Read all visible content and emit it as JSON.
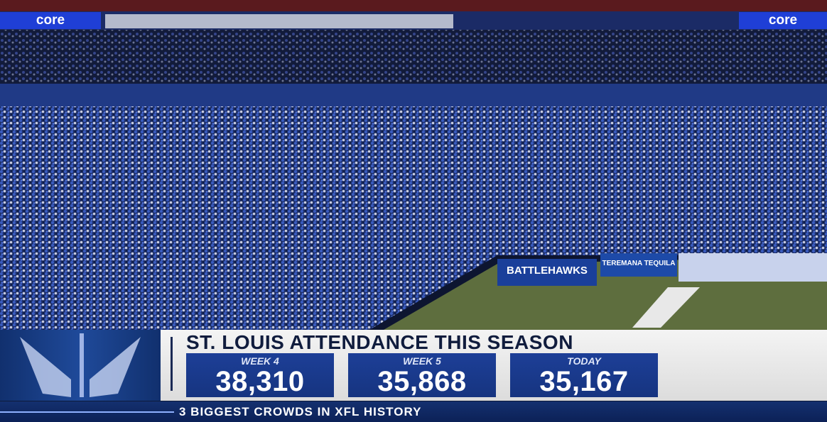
{
  "scoreboard_ads": [
    "core",
    "core"
  ],
  "banners": {
    "team": "BATTLEHAWKS",
    "sponsor": "TEREMANA TEQUILA"
  },
  "graphic": {
    "title": "ST. LOUIS ATTENDANCE THIS SEASON",
    "stats": [
      {
        "label": "WEEK 4",
        "value": "38,310"
      },
      {
        "label": "WEEK 5",
        "value": "35,868"
      },
      {
        "label": "TODAY",
        "value": "35,167"
      }
    ],
    "footer": "3 BIGGEST CROWDS IN XFL HISTORY"
  }
}
